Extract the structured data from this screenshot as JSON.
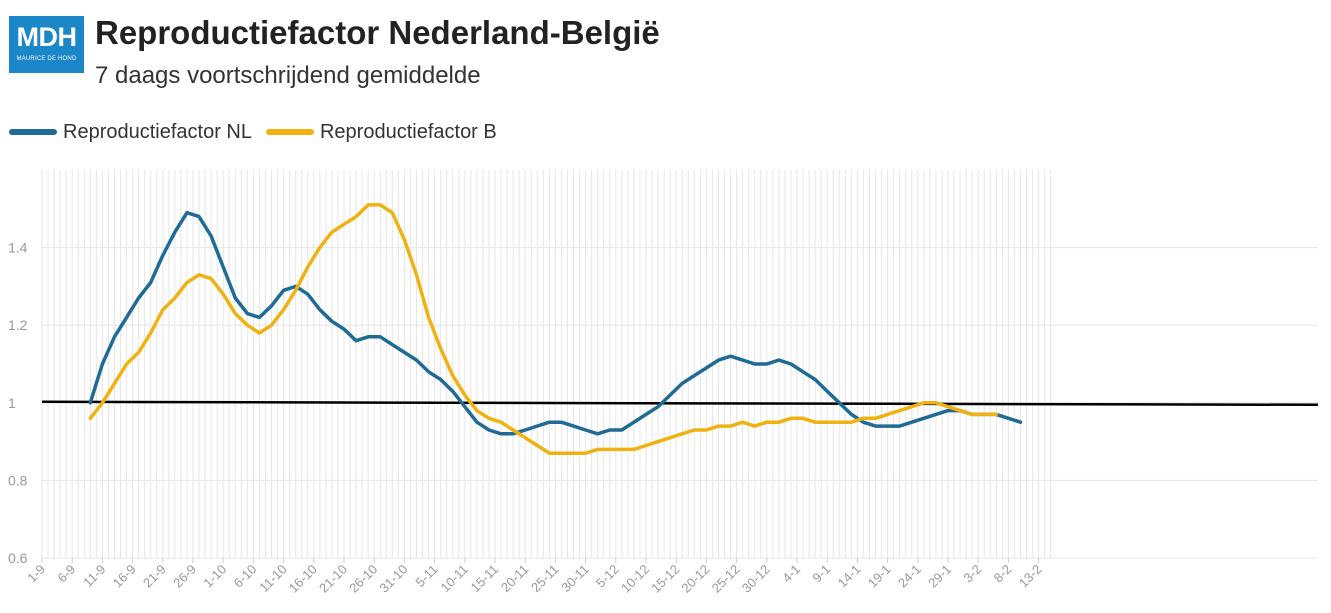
{
  "header": {
    "logo_text": "MDH",
    "logo_subtext": "MAURICE DE HOND",
    "title": "Reproductiefactor Nederland-België",
    "subtitle": "7 daags voortschrijdend gemiddelde"
  },
  "colors": {
    "nl": "#1f6a96",
    "b": "#f0b211",
    "reference": "#000000",
    "grid": "#e6e6e6",
    "tick_text": "#999999"
  },
  "chart_data": {
    "type": "line",
    "title": "Reproductiefactor Nederland-België",
    "subtitle": "7 daags voortschrijdend gemiddelde",
    "xlabel": "",
    "ylabel": "",
    "x_range": [
      "1-9",
      "15-2"
    ],
    "ylim": [
      0.6,
      1.6
    ],
    "y_ticks": [
      0.6,
      0.8,
      1,
      1.2,
      1.4
    ],
    "y_tick_labels": [
      "0.6",
      "0.8",
      "1",
      "1.2",
      "1.4"
    ],
    "x_tick_labels": [
      "1-9",
      "6-9",
      "11-9",
      "16-9",
      "21-9",
      "26-9",
      "1-10",
      "6-10",
      "11-10",
      "16-10",
      "21-10",
      "26-10",
      "31-10",
      "5-11",
      "10-11",
      "15-11",
      "20-11",
      "25-11",
      "30-11",
      "5-12",
      "10-12",
      "15-12",
      "20-12",
      "25-12",
      "30-12",
      "4-1",
      "9-1",
      "14-1",
      "19-1",
      "24-1",
      "29-1",
      "3-2",
      "8-2",
      "13-2"
    ],
    "grid": "vertical-daily",
    "legend_position": "top-left",
    "reference_line": 1,
    "series": [
      {
        "name": "Reproductiefactor NL",
        "color": "#1f6a96",
        "x": [
          "9-9",
          "11-9",
          "13-9",
          "15-9",
          "17-9",
          "19-9",
          "21-9",
          "23-9",
          "25-9",
          "27-9",
          "29-9",
          "1-10",
          "3-10",
          "5-10",
          "7-10",
          "9-10",
          "11-10",
          "13-10",
          "15-10",
          "17-10",
          "19-10",
          "21-10",
          "23-10",
          "25-10",
          "27-10",
          "29-10",
          "31-10",
          "2-11",
          "4-11",
          "6-11",
          "8-11",
          "10-11",
          "12-11",
          "14-11",
          "16-11",
          "18-11",
          "20-11",
          "22-11",
          "24-11",
          "26-11",
          "28-11",
          "30-11",
          "2-12",
          "4-12",
          "6-12",
          "8-12",
          "10-12",
          "12-12",
          "14-12",
          "16-12",
          "18-12",
          "20-12",
          "22-12",
          "24-12",
          "26-12",
          "28-12",
          "30-12",
          "1-1",
          "3-1",
          "5-1",
          "7-1",
          "9-1",
          "11-1",
          "13-1",
          "15-1",
          "17-1",
          "19-1",
          "21-1",
          "23-1",
          "25-1",
          "27-1",
          "29-1",
          "31-1",
          "2-2",
          "4-2",
          "6-2",
          "8-2",
          "10-2"
        ],
        "values": [
          1.0,
          1.1,
          1.17,
          1.22,
          1.27,
          1.31,
          1.38,
          1.44,
          1.49,
          1.48,
          1.43,
          1.35,
          1.27,
          1.23,
          1.22,
          1.25,
          1.29,
          1.3,
          1.28,
          1.24,
          1.21,
          1.19,
          1.16,
          1.17,
          1.17,
          1.15,
          1.13,
          1.11,
          1.08,
          1.06,
          1.03,
          0.99,
          0.95,
          0.93,
          0.92,
          0.92,
          0.93,
          0.94,
          0.95,
          0.95,
          0.94,
          0.93,
          0.92,
          0.93,
          0.93,
          0.95,
          0.97,
          0.99,
          1.02,
          1.05,
          1.07,
          1.09,
          1.11,
          1.12,
          1.11,
          1.1,
          1.1,
          1.11,
          1.1,
          1.08,
          1.06,
          1.03,
          1.0,
          0.97,
          0.95,
          0.94,
          0.94,
          0.94,
          0.95,
          0.96,
          0.97,
          0.98,
          0.98,
          0.97,
          0.97,
          0.97,
          0.96,
          0.95
        ]
      },
      {
        "name": "Reproductiefactor B",
        "color": "#f0b211",
        "x": [
          "9-9",
          "11-9",
          "13-9",
          "15-9",
          "17-9",
          "19-9",
          "21-9",
          "23-9",
          "25-9",
          "27-9",
          "29-9",
          "1-10",
          "3-10",
          "5-10",
          "7-10",
          "9-10",
          "11-10",
          "13-10",
          "15-10",
          "17-10",
          "19-10",
          "21-10",
          "23-10",
          "25-10",
          "27-10",
          "29-10",
          "31-10",
          "2-11",
          "4-11",
          "6-11",
          "8-11",
          "10-11",
          "12-11",
          "14-11",
          "16-11",
          "18-11",
          "20-11",
          "22-11",
          "24-11",
          "26-11",
          "28-11",
          "30-11",
          "2-12",
          "4-12",
          "6-12",
          "8-12",
          "10-12",
          "12-12",
          "14-12",
          "16-12",
          "18-12",
          "20-12",
          "22-12",
          "24-12",
          "26-12",
          "28-12",
          "30-12",
          "1-1",
          "3-1",
          "5-1",
          "7-1",
          "9-1",
          "11-1",
          "13-1",
          "15-1",
          "17-1",
          "19-1",
          "21-1",
          "23-1",
          "25-1",
          "27-1",
          "29-1",
          "31-1",
          "2-2",
          "4-2",
          "6-2"
        ],
        "values": [
          0.96,
          1.0,
          1.05,
          1.1,
          1.13,
          1.18,
          1.24,
          1.27,
          1.31,
          1.33,
          1.32,
          1.28,
          1.23,
          1.2,
          1.18,
          1.2,
          1.24,
          1.29,
          1.35,
          1.4,
          1.44,
          1.46,
          1.48,
          1.51,
          1.51,
          1.49,
          1.42,
          1.33,
          1.22,
          1.14,
          1.07,
          1.02,
          0.98,
          0.96,
          0.95,
          0.93,
          0.91,
          0.89,
          0.87,
          0.87,
          0.87,
          0.87,
          0.88,
          0.88,
          0.88,
          0.88,
          0.89,
          0.9,
          0.91,
          0.92,
          0.93,
          0.93,
          0.94,
          0.94,
          0.95,
          0.94,
          0.95,
          0.95,
          0.96,
          0.96,
          0.95,
          0.95,
          0.95,
          0.95,
          0.96,
          0.96,
          0.97,
          0.98,
          0.99,
          1.0,
          1.0,
          0.99,
          0.98,
          0.97,
          0.97,
          0.97
        ]
      }
    ]
  }
}
